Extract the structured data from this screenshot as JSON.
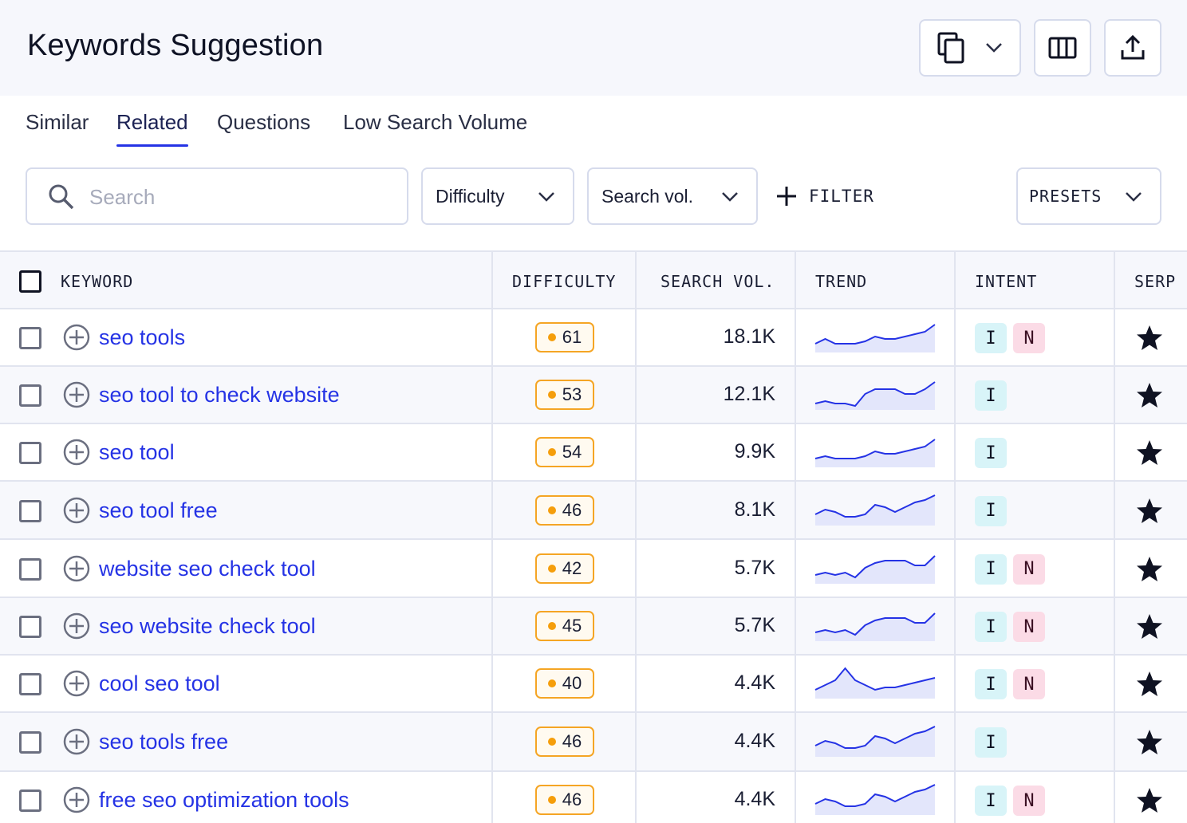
{
  "header": {
    "title": "Keywords Suggestion",
    "icons": [
      "copy-icon",
      "chevron-down-icon",
      "columns-icon",
      "export-icon"
    ]
  },
  "tabs": [
    {
      "label": "Similar",
      "active": false
    },
    {
      "label": "Related",
      "active": true
    },
    {
      "label": "Questions",
      "active": false
    },
    {
      "label": "Low Search Volume",
      "active": false
    }
  ],
  "toolbar": {
    "search_placeholder": "Search",
    "difficulty_label": "Difficulty",
    "search_vol_label": "Search vol.",
    "filter_label": "FILTER",
    "presets_label": "PRESETS"
  },
  "table": {
    "columns": {
      "keyword": "KEYWORD",
      "difficulty": "DIFFICULTY",
      "search_vol": "SEARCH VOL.",
      "trend": "TREND",
      "intent": "INTENT",
      "serp": "SERP"
    },
    "rows": [
      {
        "keyword": "seo tools",
        "difficulty": "61",
        "volume": "18.1K",
        "intent": [
          "I",
          "N"
        ],
        "trend": [
          3,
          5,
          3,
          3,
          3,
          4,
          6,
          5,
          5,
          6,
          7,
          8,
          11
        ]
      },
      {
        "keyword": "seo tool to check website",
        "difficulty": "53",
        "volume": "12.1K",
        "intent": [
          "I"
        ],
        "trend": [
          2,
          3,
          2,
          2,
          1,
          6,
          8,
          8,
          8,
          6,
          6,
          8,
          11
        ]
      },
      {
        "keyword": "seo tool",
        "difficulty": "54",
        "volume": "9.9K",
        "intent": [
          "I"
        ],
        "trend": [
          3,
          4,
          3,
          3,
          3,
          4,
          6,
          5,
          5,
          6,
          7,
          8,
          11
        ]
      },
      {
        "keyword": "seo tool free",
        "difficulty": "46",
        "volume": "8.1K",
        "intent": [
          "I"
        ],
        "trend": [
          4,
          6,
          5,
          3,
          3,
          4,
          8,
          7,
          5,
          7,
          9,
          10,
          12
        ]
      },
      {
        "keyword": "website seo check tool",
        "difficulty": "42",
        "volume": "5.7K",
        "intent": [
          "I",
          "N"
        ],
        "trend": [
          3,
          4,
          3,
          4,
          2,
          6,
          8,
          9,
          9,
          9,
          7,
          7,
          11
        ]
      },
      {
        "keyword": "seo website check tool",
        "difficulty": "45",
        "volume": "5.7K",
        "intent": [
          "I",
          "N"
        ],
        "trend": [
          3,
          4,
          3,
          4,
          2,
          6,
          8,
          9,
          9,
          9,
          7,
          7,
          11
        ]
      },
      {
        "keyword": "cool seo tool",
        "difficulty": "40",
        "volume": "4.4K",
        "intent": [
          "I",
          "N"
        ],
        "trend": [
          3,
          5,
          7,
          12,
          7,
          5,
          3,
          4,
          4,
          5,
          6,
          7,
          8
        ]
      },
      {
        "keyword": "seo tools free",
        "difficulty": "46",
        "volume": "4.4K",
        "intent": [
          "I"
        ],
        "trend": [
          4,
          6,
          5,
          3,
          3,
          4,
          8,
          7,
          5,
          7,
          9,
          10,
          12
        ]
      },
      {
        "keyword": "free seo optimization tools",
        "difficulty": "46",
        "volume": "4.4K",
        "intent": [
          "I",
          "N"
        ],
        "trend": [
          4,
          6,
          5,
          3,
          3,
          4,
          8,
          7,
          5,
          7,
          9,
          10,
          12
        ]
      }
    ]
  },
  "colors": {
    "accent": "#2533e5",
    "difficulty_border": "#f5a524",
    "difficulty_dot": "#f59e0b",
    "intent_i": "#d8f4f8",
    "intent_n": "#fbdbe6",
    "trend_fill": "#e3e6fb"
  }
}
